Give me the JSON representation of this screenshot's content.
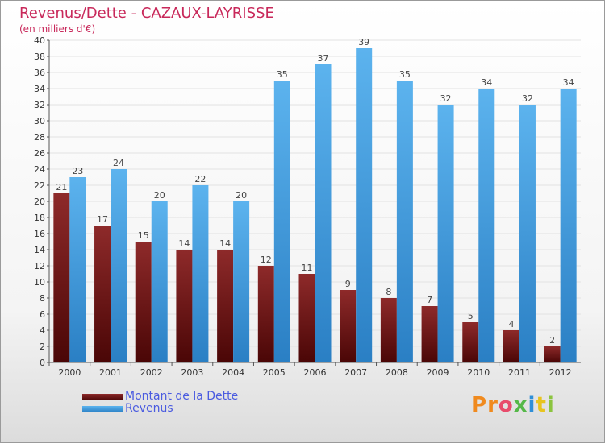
{
  "chart_data": {
    "type": "bar",
    "title": "Revenus/Dette - CAZAUX-LAYRISSE",
    "subtitle": "(en milliers d'€)",
    "categories": [
      "2000",
      "2001",
      "2002",
      "2003",
      "2004",
      "2005",
      "2006",
      "2007",
      "2008",
      "2009",
      "2010",
      "2011",
      "2012"
    ],
    "series": [
      {
        "name": "Montant de la Dette",
        "color": "#7a1414",
        "values": [
          21,
          17,
          15,
          14,
          14,
          12,
          11,
          9,
          8,
          7,
          5,
          4,
          2
        ]
      },
      {
        "name": "Revenus",
        "color": "#3f9fe2",
        "values": [
          23,
          24,
          20,
          22,
          20,
          35,
          37,
          39,
          35,
          32,
          34,
          32,
          34
        ]
      }
    ],
    "ylim": [
      0,
      40
    ],
    "yticks": [
      0,
      2,
      4,
      6,
      8,
      10,
      12,
      14,
      16,
      18,
      20,
      22,
      24,
      26,
      28,
      30,
      32,
      34,
      36,
      38,
      40
    ],
    "grid": true,
    "legend": "bottom-left"
  },
  "brand": {
    "letters": [
      "P",
      "r",
      "o",
      "x",
      "i",
      "t",
      "i"
    ],
    "colors": [
      "#f08a1e",
      "#f08a1e",
      "#e84c6c",
      "#55b848",
      "#2f8fd8",
      "#e8c41e",
      "#8bc43f"
    ]
  }
}
